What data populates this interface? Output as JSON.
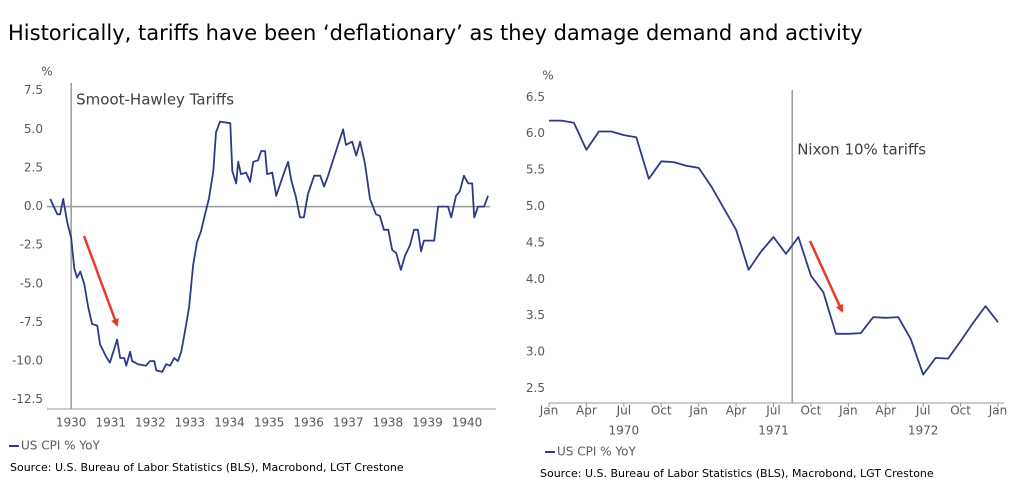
{
  "title": "Historically, tariffs have been ‘deflationary’ as they damage demand and activity",
  "chart_data": [
    {
      "type": "line",
      "y_unit": "%",
      "xlim": [
        1929.39,
        1940.58
      ],
      "xticks": [
        1930,
        1931,
        1932,
        1933,
        1934,
        1935,
        1936,
        1937,
        1938,
        1939,
        1940
      ],
      "ylim": [
        -13.1,
        8.0
      ],
      "yticks": [
        {
          "value": 7.5,
          "label": "7.5"
        },
        {
          "value": 5,
          "label": "5.0"
        },
        {
          "value": 2.5,
          "label": "2.5"
        },
        {
          "value": 0,
          "label": "0.0"
        },
        {
          "value": -2.5,
          "label": "-2.5"
        },
        {
          "value": -5,
          "label": "-5.0"
        },
        {
          "value": -7.5,
          "label": "-7.5"
        },
        {
          "value": -10,
          "label": "-10.0"
        },
        {
          "value": -12.5,
          "label": "-12.5"
        }
      ],
      "zero_line": true,
      "annotation": {
        "text": "Smoot-Hawley Tariffs",
        "x": 1930
      },
      "x": [
        1929.47,
        1929.65,
        1929.72,
        1929.8,
        1929.9,
        1930.0,
        1930.08,
        1930.15,
        1930.23,
        1930.33,
        1930.43,
        1930.53,
        1930.66,
        1930.73,
        1930.88,
        1930.98,
        1931.09,
        1931.16,
        1931.24,
        1931.34,
        1931.39,
        1931.49,
        1931.54,
        1931.69,
        1931.89,
        1931.99,
        1932.1,
        1932.15,
        1932.3,
        1932.4,
        1932.5,
        1932.6,
        1932.7,
        1932.78,
        1932.88,
        1932.98,
        1933.08,
        1933.18,
        1933.28,
        1933.38,
        1933.48,
        1933.59,
        1933.66,
        1933.76,
        1934.02,
        1934.07,
        1934.17,
        1934.22,
        1934.29,
        1934.42,
        1934.52,
        1934.6,
        1934.72,
        1934.8,
        1934.9,
        1934.95,
        1935.08,
        1935.18,
        1935.38,
        1935.48,
        1935.56,
        1935.68,
        1935.78,
        1935.88,
        1935.98,
        1936.14,
        1936.29,
        1936.39,
        1936.49,
        1936.69,
        1936.87,
        1936.94,
        1937.1,
        1937.2,
        1937.3,
        1937.42,
        1937.55,
        1937.7,
        1937.8,
        1937.9,
        1938.01,
        1938.11,
        1938.21,
        1938.33,
        1938.43,
        1938.56,
        1938.66,
        1938.76,
        1938.84,
        1938.91,
        1939.17,
        1939.27,
        1939.52,
        1939.6,
        1939.72,
        1939.82,
        1939.92,
        1940.03,
        1940.13,
        1940.18,
        1940.28,
        1940.43,
        1940.53
      ],
      "series": [
        {
          "name": "US CPI % YoY",
          "color": "#2e3a87",
          "values": [
            0.5,
            -0.5,
            -0.5,
            0.5,
            -1,
            -2,
            -4,
            -4.6,
            -4.2,
            -5,
            -6.5,
            -7.6,
            -7.7,
            -8.9,
            -9.7,
            -10.1,
            -9.2,
            -8.6,
            -9.8,
            -9.8,
            -10.3,
            -9.4,
            -10,
            -10.2,
            -10.3,
            -10,
            -10,
            -10.6,
            -10.7,
            -10.2,
            -10.3,
            -9.8,
            -10,
            -9.4,
            -8,
            -6.5,
            -3.8,
            -2.3,
            -1.6,
            -0.5,
            0.5,
            2.3,
            4.8,
            5.5,
            5.4,
            2.3,
            1.5,
            2.9,
            2.1,
            2.2,
            1.6,
            2.9,
            3,
            3.6,
            3.6,
            2.1,
            2.2,
            0.7,
            2.2,
            2.9,
            1.7,
            0.6,
            -0.7,
            -0.7,
            0.8,
            2,
            2,
            1.3,
            2,
            3.6,
            5,
            4,
            4.2,
            3.3,
            4.2,
            2.8,
            0.5,
            -0.5,
            -0.6,
            -1.5,
            -1.5,
            -2.8,
            -3,
            -4.1,
            -3.2,
            -2.5,
            -1.5,
            -1.5,
            -2.9,
            -2.2,
            -2.2,
            0,
            0,
            -0.7,
            0.7,
            1,
            2,
            1.5,
            1.5,
            -0.7,
            0,
            0,
            0.7
          ]
        }
      ],
      "source": "Source: U.S. Bureau of Labor Statistics (BLS), Macrobond, LGT Crestone"
    },
    {
      "type": "line",
      "y_unit": "%",
      "categories": [
        "Jan",
        null,
        null,
        "Apr",
        null,
        null,
        "Jul",
        null,
        null,
        "Oct",
        null,
        null,
        "Jan",
        null,
        null,
        "Apr",
        null,
        null,
        "Jul",
        null,
        null,
        "Oct",
        null,
        null,
        "Jan",
        null,
        null,
        "Apr",
        null,
        null,
        "Jul",
        null,
        null,
        "Oct",
        null,
        null,
        "Jan"
      ],
      "year_labels": [
        "1970",
        "1971",
        "1972"
      ],
      "ylim": [
        2.3,
        6.6
      ],
      "yticks": [
        {
          "value": 6.5,
          "label": "6.5"
        },
        {
          "value": 6,
          "label": "6.0"
        },
        {
          "value": 5.5,
          "label": "5.5"
        },
        {
          "value": 5,
          "label": "5.0"
        },
        {
          "value": 4.5,
          "label": "4.5"
        },
        {
          "value": 4,
          "label": "4.0"
        },
        {
          "value": 3.5,
          "label": "3.5"
        },
        {
          "value": 3,
          "label": "3.0"
        },
        {
          "value": 2.5,
          "label": "2.5"
        }
      ],
      "annotation": {
        "text": "Nixon 10% tariffs",
        "x": 19.5
      },
      "series": [
        {
          "name": "US CPI % YoY",
          "color": "#2e3a87",
          "values": [
            6.18,
            6.18,
            6.15,
            5.78,
            6.03,
            6.03,
            5.98,
            5.95,
            5.38,
            5.62,
            5.61,
            5.56,
            5.53,
            5.28,
            4.98,
            4.68,
            4.13,
            4.38,
            4.58,
            4.35,
            4.58,
            4.05,
            3.82,
            3.25,
            3.25,
            3.26,
            3.48,
            3.47,
            3.48,
            3.18,
            2.69,
            2.92,
            2.91,
            3.15,
            3.4,
            3.63,
            3.41
          ]
        }
      ],
      "source": "Source: U.S. Bureau of Labor Statistics (BLS), Macrobond, LGT Crestone"
    }
  ]
}
